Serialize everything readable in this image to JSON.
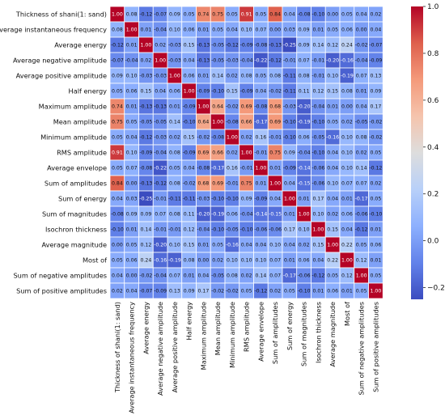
{
  "chart_data": {
    "type": "heatmap",
    "title": "",
    "labels": [
      "Thickness of shani(1: sand)",
      "Average instantaneous frequency",
      "Average energy",
      "Average negative amplitude",
      "Average positive amplitude",
      "Half energy",
      "Maximum amplitude",
      "Mean amplitude",
      "Minimum amplitude",
      "RMS amplitude",
      "Average envelope",
      "Sum of amplitudes",
      "Sum of energy",
      "Sum of magnitudes",
      "Isochron thickness",
      "Average magnitude",
      "Most of",
      "Sum of negative amplitudes",
      "Sum of positive amplitudes"
    ],
    "row_labels_display": [
      "Thickness of shani(1: sand)",
      "Average instantaneous frequency",
      "Average energy",
      "Average negative amplitude",
      "Average positive amplitude",
      "Half energy",
      "Maximum amplitude",
      "Mean amplitude",
      "Minimum amplitude",
      "RMS amplitude",
      "Average envelope",
      "Sum of amplitudes",
      "Sum of energy",
      "Sum of magnitudes",
      "Isochron thickness",
      "Average magnitude",
      "Most of",
      "Sum of negative amplitudes",
      "Sum of positive amplitudes"
    ],
    "col_labels_display": [
      "Thickness of shani(1: sand)",
      "Average instantaneous frequency",
      "Average energy",
      "Average negative amplitude",
      "Average positive amplitude",
      "Half energy",
      "Maximum amplitude",
      "Mean amplitude",
      "Minimum amplitude",
      "RMS amplitude",
      "Average envelope",
      "Sum of amplitudes",
      "Sum of energy",
      "Sum of magnitudes",
      "Isochron thickness",
      "Average magnitude",
      "Most of",
      "Sum of negative amplitudes",
      "Sum of positive amplitudes"
    ],
    "values": [
      [
        1.0,
        0.08,
        -0.12,
        -0.07,
        0.09,
        0.05,
        0.74,
        0.75,
        0.05,
        0.91,
        0.05,
        0.84,
        0.04,
        -0.08,
        -0.1,
        0.0,
        0.05,
        0.04,
        0.02
      ],
      [
        0.08,
        1.0,
        0.01,
        -0.04,
        0.1,
        0.06,
        0.01,
        0.05,
        0.04,
        0.1,
        0.07,
        0.0,
        0.03,
        0.09,
        0.01,
        0.05,
        0.06,
        0.0,
        0.04
      ],
      [
        -0.12,
        0.01,
        1.0,
        0.02,
        -0.03,
        0.15,
        -0.13,
        -0.05,
        -0.12,
        -0.09,
        -0.08,
        -0.13,
        -0.25,
        0.09,
        0.14,
        0.12,
        0.24,
        -0.02,
        -0.07
      ],
      [
        -0.07,
        -0.04,
        0.02,
        1.0,
        -0.03,
        0.04,
        -0.13,
        -0.05,
        -0.03,
        -0.04,
        -0.22,
        -0.12,
        -0.01,
        0.07,
        -0.01,
        -0.2,
        -0.16,
        -0.04,
        -0.09
      ],
      [
        0.09,
        0.1,
        -0.03,
        -0.03,
        1.0,
        0.06,
        0.01,
        0.14,
        0.02,
        0.08,
        0.05,
        0.08,
        -0.11,
        0.08,
        -0.01,
        0.1,
        -0.19,
        0.07,
        0.13
      ],
      [
        0.05,
        0.06,
        0.15,
        0.04,
        0.06,
        1.0,
        -0.09,
        -0.1,
        0.15,
        -0.09,
        0.04,
        -0.02,
        -0.11,
        0.11,
        0.12,
        0.15,
        0.08,
        0.01,
        0.09
      ],
      [
        0.74,
        0.01,
        -0.13,
        -0.13,
        0.01,
        -0.09,
        1.0,
        0.64,
        -0.02,
        0.69,
        -0.08,
        0.68,
        -0.03,
        -0.2,
        -0.04,
        0.01,
        0.0,
        0.04,
        0.17
      ],
      [
        0.75,
        0.05,
        -0.05,
        -0.05,
        0.14,
        -0.1,
        0.64,
        1.0,
        -0.08,
        0.66,
        -0.17,
        0.69,
        -0.1,
        -0.19,
        -0.1,
        0.05,
        0.02,
        -0.05,
        -0.02
      ],
      [
        0.05,
        0.04,
        -0.12,
        -0.03,
        0.02,
        0.15,
        -0.02,
        -0.08,
        1.0,
        0.02,
        0.16,
        -0.01,
        -0.1,
        0.06,
        -0.05,
        -0.16,
        0.1,
        0.08,
        -0.02
      ],
      [
        0.91,
        0.1,
        -0.09,
        -0.04,
        0.08,
        -0.09,
        0.69,
        0.66,
        0.02,
        1.0,
        -0.01,
        0.75,
        0.09,
        -0.04,
        -0.1,
        0.04,
        0.1,
        0.02,
        0.05
      ],
      [
        0.05,
        0.07,
        -0.08,
        -0.22,
        0.05,
        0.04,
        -0.08,
        -0.17,
        0.16,
        -0.01,
        1.0,
        0.01,
        -0.09,
        -0.14,
        -0.06,
        0.04,
        0.1,
        0.14,
        -0.12
      ],
      [
        0.84,
        0.0,
        -0.13,
        -0.12,
        0.08,
        -0.02,
        0.68,
        0.69,
        -0.01,
        0.75,
        0.01,
        1.0,
        0.04,
        -0.15,
        -0.06,
        0.1,
        0.07,
        0.07,
        0.02
      ],
      [
        0.04,
        0.03,
        -0.25,
        -0.01,
        -0.11,
        -0.11,
        -0.03,
        -0.1,
        -0.1,
        0.09,
        -0.09,
        0.04,
        1.0,
        0.01,
        0.17,
        0.04,
        0.01,
        -0.17,
        0.05
      ],
      [
        -0.08,
        0.09,
        0.09,
        0.07,
        0.08,
        0.11,
        -0.2,
        -0.19,
        0.06,
        -0.04,
        -0.14,
        -0.15,
        0.01,
        1.0,
        0.1,
        0.02,
        0.06,
        -0.06,
        -0.1
      ],
      [
        -0.1,
        0.01,
        0.14,
        -0.01,
        -0.01,
        0.12,
        -0.04,
        -0.1,
        -0.05,
        -0.1,
        -0.06,
        -0.06,
        0.17,
        0.1,
        1.0,
        0.15,
        0.04,
        -0.12,
        0.01
      ],
      [
        0.0,
        0.05,
        0.12,
        -0.2,
        0.1,
        0.15,
        0.01,
        0.05,
        -0.16,
        0.04,
        0.04,
        0.1,
        0.04,
        0.02,
        0.15,
        1.0,
        0.22,
        0.05,
        0.06
      ],
      [
        0.05,
        0.06,
        0.24,
        -0.16,
        -0.19,
        0.08,
        0.0,
        0.02,
        0.1,
        0.1,
        0.1,
        0.07,
        0.01,
        0.06,
        0.04,
        0.22,
        1.0,
        0.12,
        0.01
      ],
      [
        0.04,
        0.0,
        -0.02,
        -0.04,
        0.07,
        0.01,
        0.04,
        -0.05,
        0.08,
        0.02,
        0.14,
        0.07,
        -0.17,
        -0.06,
        -0.12,
        0.05,
        0.12,
        1.0,
        0.05
      ],
      [
        0.02,
        0.04,
        -0.07,
        -0.09,
        0.13,
        0.09,
        0.17,
        -0.02,
        -0.02,
        0.05,
        -0.12,
        0.02,
        0.05,
        -0.1,
        0.01,
        0.06,
        0.01,
        0.05,
        1.0
      ]
    ],
    "value_format": "2-decimal",
    "colorbar": {
      "ticks": [
        1.0,
        0.8,
        0.6,
        0.4,
        0.2,
        0.0,
        -0.2
      ],
      "tick_labels": [
        "1.0",
        "0.8",
        "0.6",
        "0.4",
        "0.2",
        "0.0",
        "−0.2"
      ],
      "range": [
        -0.25,
        1.0
      ],
      "colormap": "coolwarm",
      "placement": "right"
    },
    "grid": true
  }
}
